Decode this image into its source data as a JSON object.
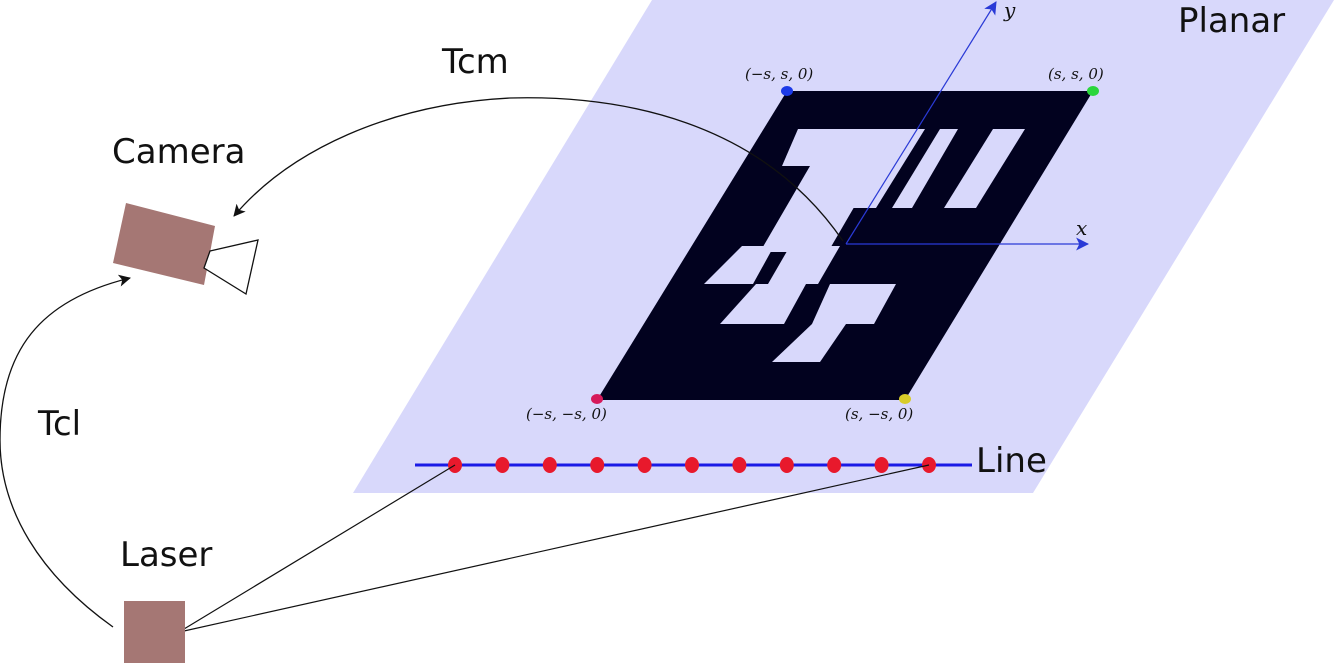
{
  "labels": {
    "planar": "Planar",
    "tcm": "Tcm",
    "camera": "Camera",
    "tcl": "Tcl",
    "laser": "Laser",
    "line": "Line"
  },
  "axes": {
    "x": "x",
    "y": "y"
  },
  "corners": {
    "top_left": "(−s, s, 0)",
    "top_right": "(s, s, 0)",
    "bottom_left": "(−s, −s, 0)",
    "bottom_right": "(s, −s, 0)"
  },
  "colors": {
    "plane": "#d8d8fb",
    "marker": "#02021f",
    "device": "#a57774",
    "line": "#1a1ae6",
    "laser_point": "#e8192c",
    "corner_top_left": "#1c3ae8",
    "corner_top_right": "#2bd63c",
    "corner_bottom_left": "#d6195a",
    "corner_bottom_right": "#d8cc2a",
    "axis": "#2a3ad6"
  },
  "laser_points": {
    "count": 11
  }
}
